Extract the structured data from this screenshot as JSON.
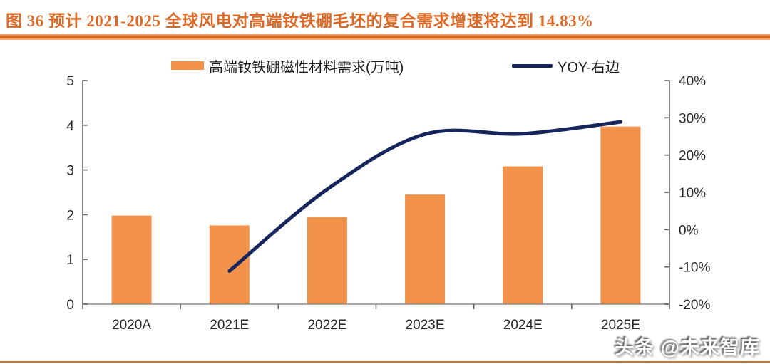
{
  "title": {
    "text": "图 36  预计 2021-2025 全球风电对高端钕铁硼毛坯的复合需求增速将达到 14.83%"
  },
  "colors": {
    "title": "#DC6A26",
    "bar": "#F2914A",
    "line": "#16265C",
    "rule_dark": "#D2691E",
    "rule_light": "#F2A977",
    "side_axis": "#595959",
    "bottom_axis": "#8C8C8C",
    "label_text": "#262626"
  },
  "legend": {
    "items": [
      {
        "label": "高端钕铁硼磁性材料需求(万吨)",
        "swatch": "bar"
      },
      {
        "label": "YOY-右边",
        "swatch": "line"
      }
    ]
  },
  "footer": {
    "watermark": "头条 @未来智库"
  },
  "chart_data": {
    "type": "bar",
    "subtype": "bar+line combo",
    "title": "预计 2021-2025 全球风电对高端钕铁硼毛坯的复合需求增速将达到 14.83%",
    "categories": [
      "2020A",
      "2021E",
      "2022E",
      "2023E",
      "2024E",
      "2025E"
    ],
    "series": [
      {
        "name": "高端钕铁硼磁性材料需求(万吨)",
        "type": "bar",
        "axis": "left",
        "values": [
          1.98,
          1.76,
          1.95,
          2.45,
          3.08,
          3.97
        ]
      },
      {
        "name": "YOY-右边",
        "type": "line",
        "axis": "right",
        "unit": "%",
        "values": [
          null,
          -11.1,
          10.8,
          25.6,
          25.7,
          28.9
        ]
      }
    ],
    "left_axis": {
      "min": 0,
      "max": 5,
      "tick_step": 1,
      "tick_labels": [
        "0",
        "1",
        "2",
        "3",
        "4",
        "5"
      ]
    },
    "right_axis": {
      "min": -20,
      "max": 40,
      "tick_step": 10,
      "tick_labels": [
        "-20%",
        "-10%",
        "0%",
        "10%",
        "20%",
        "30%",
        "40%"
      ]
    },
    "grid": false,
    "legend_position": "top"
  }
}
